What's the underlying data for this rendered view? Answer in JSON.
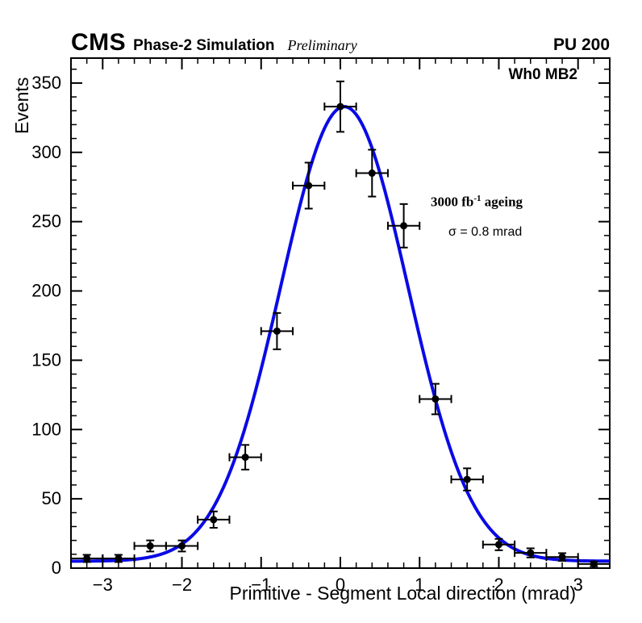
{
  "header": {
    "experiment": "CMS",
    "label": "Phase-2 Simulation",
    "preliminary": "Preliminary",
    "pileup": "PU 200"
  },
  "annotations": {
    "station": "Wh0 MB2",
    "lumi_prefix": "3000 fb",
    "lumi_sup": "-1",
    "lumi_suffix": " ageing",
    "sigma": "σ = 0.8 mrad"
  },
  "chart_data": {
    "type": "scatter",
    "title": "",
    "xlabel": "Primitive - Segment Local direction (mrad)",
    "ylabel": "Events",
    "xlim": [
      -3.4,
      3.4
    ],
    "ylim": [
      0,
      368
    ],
    "x_major_ticks": [
      -3,
      -2,
      -1,
      0,
      1,
      2,
      3
    ],
    "x_minor_step": 0.2,
    "y_major_ticks": [
      0,
      50,
      100,
      150,
      200,
      250,
      300,
      350
    ],
    "y_minor_step": 10,
    "grid": false,
    "frame_color": "#000000",
    "marker": {
      "color": "#000000",
      "radius": 4.5
    },
    "fit": {
      "shape": "gaussian_plus_const",
      "amplitude": 328,
      "mean": 0.05,
      "sigma": 0.8,
      "constant": 5,
      "color": "#0a0ae6",
      "linewidth": 4
    },
    "points": [
      {
        "x": -3.2,
        "y": 7,
        "xerr": 0.2,
        "yerr": 2.6
      },
      {
        "x": -2.8,
        "y": 7,
        "xerr": 0.2,
        "yerr": 2.6
      },
      {
        "x": -2.4,
        "y": 16,
        "xerr": 0.2,
        "yerr": 4.0
      },
      {
        "x": -2.0,
        "y": 16,
        "xerr": 0.2,
        "yerr": 4.0
      },
      {
        "x": -1.6,
        "y": 35,
        "xerr": 0.2,
        "yerr": 5.9
      },
      {
        "x": -1.2,
        "y": 80,
        "xerr": 0.2,
        "yerr": 8.9
      },
      {
        "x": -0.8,
        "y": 171,
        "xerr": 0.2,
        "yerr": 13.1
      },
      {
        "x": -0.4,
        "y": 276,
        "xerr": 0.2,
        "yerr": 16.6
      },
      {
        "x": 0.0,
        "y": 333,
        "xerr": 0.2,
        "yerr": 18.2
      },
      {
        "x": 0.4,
        "y": 285,
        "xerr": 0.2,
        "yerr": 16.9
      },
      {
        "x": 0.8,
        "y": 247,
        "xerr": 0.2,
        "yerr": 15.7
      },
      {
        "x": 1.2,
        "y": 122,
        "xerr": 0.2,
        "yerr": 11.0
      },
      {
        "x": 1.6,
        "y": 64,
        "xerr": 0.2,
        "yerr": 8.0
      },
      {
        "x": 2.0,
        "y": 17,
        "xerr": 0.2,
        "yerr": 4.1
      },
      {
        "x": 2.4,
        "y": 11,
        "xerr": 0.2,
        "yerr": 3.3
      },
      {
        "x": 2.8,
        "y": 8,
        "xerr": 0.2,
        "yerr": 2.8
      },
      {
        "x": 3.2,
        "y": 3,
        "xerr": 0.2,
        "yerr": 1.7
      }
    ]
  }
}
